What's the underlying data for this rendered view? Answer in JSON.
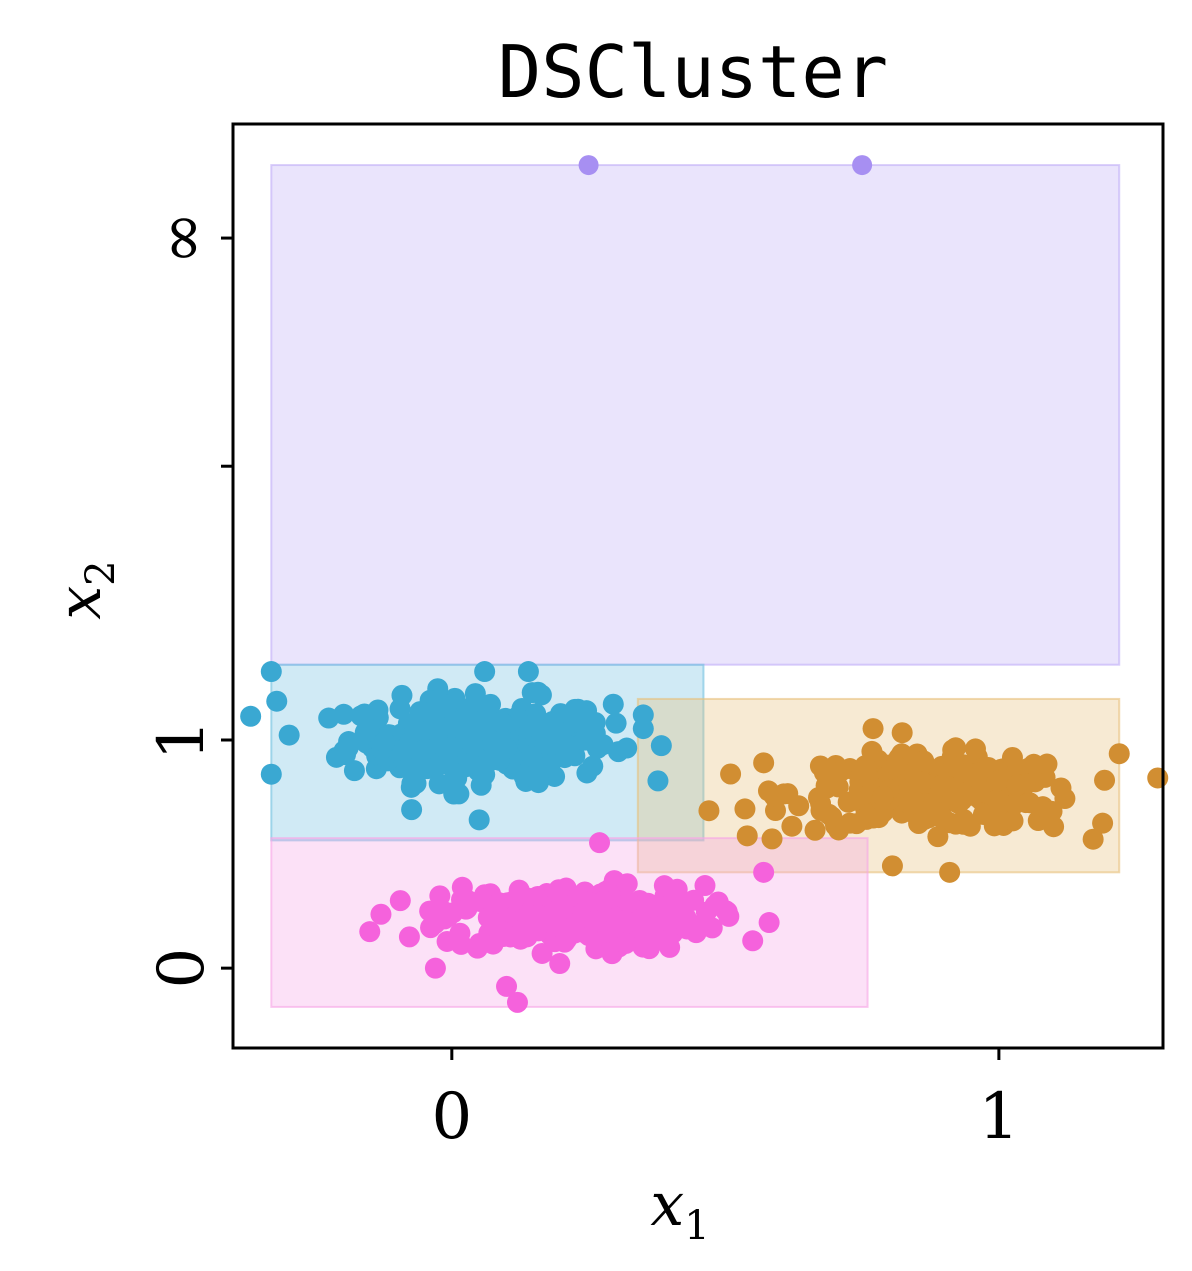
{
  "chart_data": {
    "type": "scatter",
    "title": "DSCluster",
    "xlabel": "x",
    "xlabel_sub": "1",
    "ylabel": "x",
    "ylabel_sub": "2",
    "x_ticks": [
      {
        "value": 0,
        "label": "0"
      },
      {
        "value": 1,
        "label": "1"
      }
    ],
    "y_ticks": [
      {
        "value": 0,
        "label": "0"
      },
      {
        "value": 1,
        "label": "1"
      },
      {
        "value": 2.2,
        "label": ""
      },
      {
        "value": 3.2,
        "label": "∞"
      }
    ],
    "xlim": [
      -0.4,
      1.3
    ],
    "ylim": [
      -0.35,
      3.7
    ],
    "grid": false,
    "boxes": [
      {
        "color": "#c0aef7",
        "x": [
          -0.33,
          1.22
        ],
        "y": [
          1.33,
          3.52
        ]
      },
      {
        "color": "#6fc0e0",
        "x": [
          -0.33,
          0.46
        ],
        "y": [
          0.56,
          1.33
        ]
      },
      {
        "color": "#e7bf79",
        "x": [
          0.34,
          1.22
        ],
        "y": [
          0.42,
          1.18
        ]
      },
      {
        "color": "#f6a5e6",
        "x": [
          -0.33,
          0.76
        ],
        "y": [
          -0.17,
          0.57
        ]
      }
    ],
    "series": [
      {
        "color": "#a78ff2",
        "center": [
          0.5,
          3.52
        ],
        "spread": [
          0,
          0
        ],
        "count": 0,
        "points": [
          [
            0.25,
            3.52
          ],
          [
            0.75,
            3.52
          ]
        ]
      },
      {
        "color": "#3aa8d2",
        "center": [
          0.05,
          1.0
        ],
        "spread": [
          0.12,
          0.09
        ],
        "count": 300,
        "points": [
          [
            -0.33,
            1.3
          ],
          [
            -0.32,
            1.17
          ],
          [
            -0.33,
            0.85
          ],
          [
            0.06,
            1.3
          ],
          [
            0.14,
            1.3
          ],
          [
            0.35,
            1.11
          ],
          [
            0.35,
            1.05
          ],
          [
            0.16,
            0.88
          ],
          [
            0.05,
            0.65
          ]
        ]
      },
      {
        "color": "#d18e32",
        "center": [
          0.88,
          0.77
        ],
        "spread": [
          0.13,
          0.08
        ],
        "count": 260,
        "points": [
          [
            1.22,
            0.94
          ],
          [
            0.47,
            0.69
          ],
          [
            0.54,
            0.58
          ],
          [
            0.91,
            0.42
          ],
          [
            0.77,
            1.05
          ],
          [
            1.1,
            0.62
          ],
          [
            0.57,
            0.9
          ]
        ]
      },
      {
        "color": "#f562dc",
        "center": [
          0.22,
          0.22
        ],
        "spread": [
          0.12,
          0.07
        ],
        "count": 300,
        "points": [
          [
            -0.15,
            0.16
          ],
          [
            -0.03,
            0.0
          ],
          [
            0.1,
            -0.08
          ],
          [
            0.12,
            -0.15
          ],
          [
            0.27,
            0.55
          ],
          [
            0.57,
            0.42
          ],
          [
            0.58,
            0.2
          ],
          [
            0.55,
            0.12
          ]
        ]
      }
    ]
  }
}
